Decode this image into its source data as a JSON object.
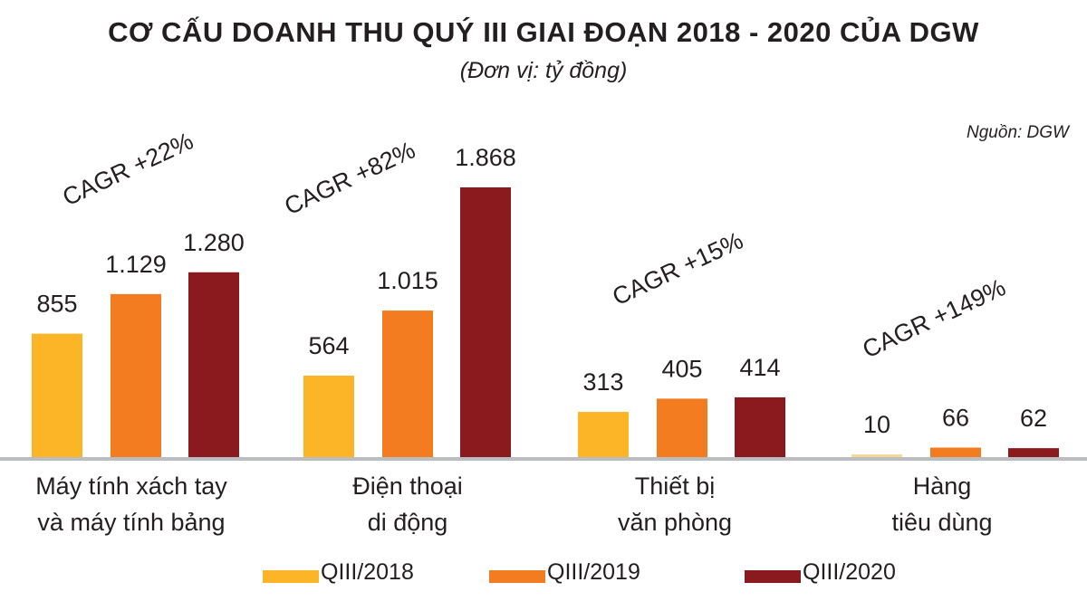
{
  "chart_data": {
    "type": "bar",
    "title": "CƠ CẤU DOANH THU QUÝ III GIAI ĐOẠN 2018 - 2020 CỦA DGW",
    "subtitle": "(Đơn vị: tỷ đồng)",
    "source": "Nguồn: DGW",
    "categories": [
      [
        "Máy tính xách tay",
        "và máy tính bảng"
      ],
      [
        "Điện thoại",
        "di động"
      ],
      [
        "Thiết bị",
        "văn phòng"
      ],
      [
        "Hàng",
        "tiêu dùng"
      ]
    ],
    "series": [
      {
        "name": "QIII/2018",
        "color": "#FBB527",
        "values": [
          855,
          564,
          313,
          10
        ],
        "labels": [
          "855",
          "564",
          "313",
          "10"
        ]
      },
      {
        "name": "QIII/2019",
        "color": "#F47C20",
        "values": [
          1129,
          1015,
          405,
          66
        ],
        "labels": [
          "1.129",
          "1.015",
          "405",
          "66"
        ]
      },
      {
        "name": "QIII/2020",
        "color": "#8B1A1E",
        "values": [
          1280,
          1868,
          414,
          62
        ],
        "labels": [
          "1.280",
          "1.868",
          "414",
          "62"
        ]
      }
    ],
    "annotations": [
      "CAGR +22%",
      "CAGR +82%",
      "CAGR +15%",
      "CAGR +149%"
    ],
    "ylim": [
      0,
      1900
    ],
    "grid": false,
    "legend_position": "bottom"
  }
}
